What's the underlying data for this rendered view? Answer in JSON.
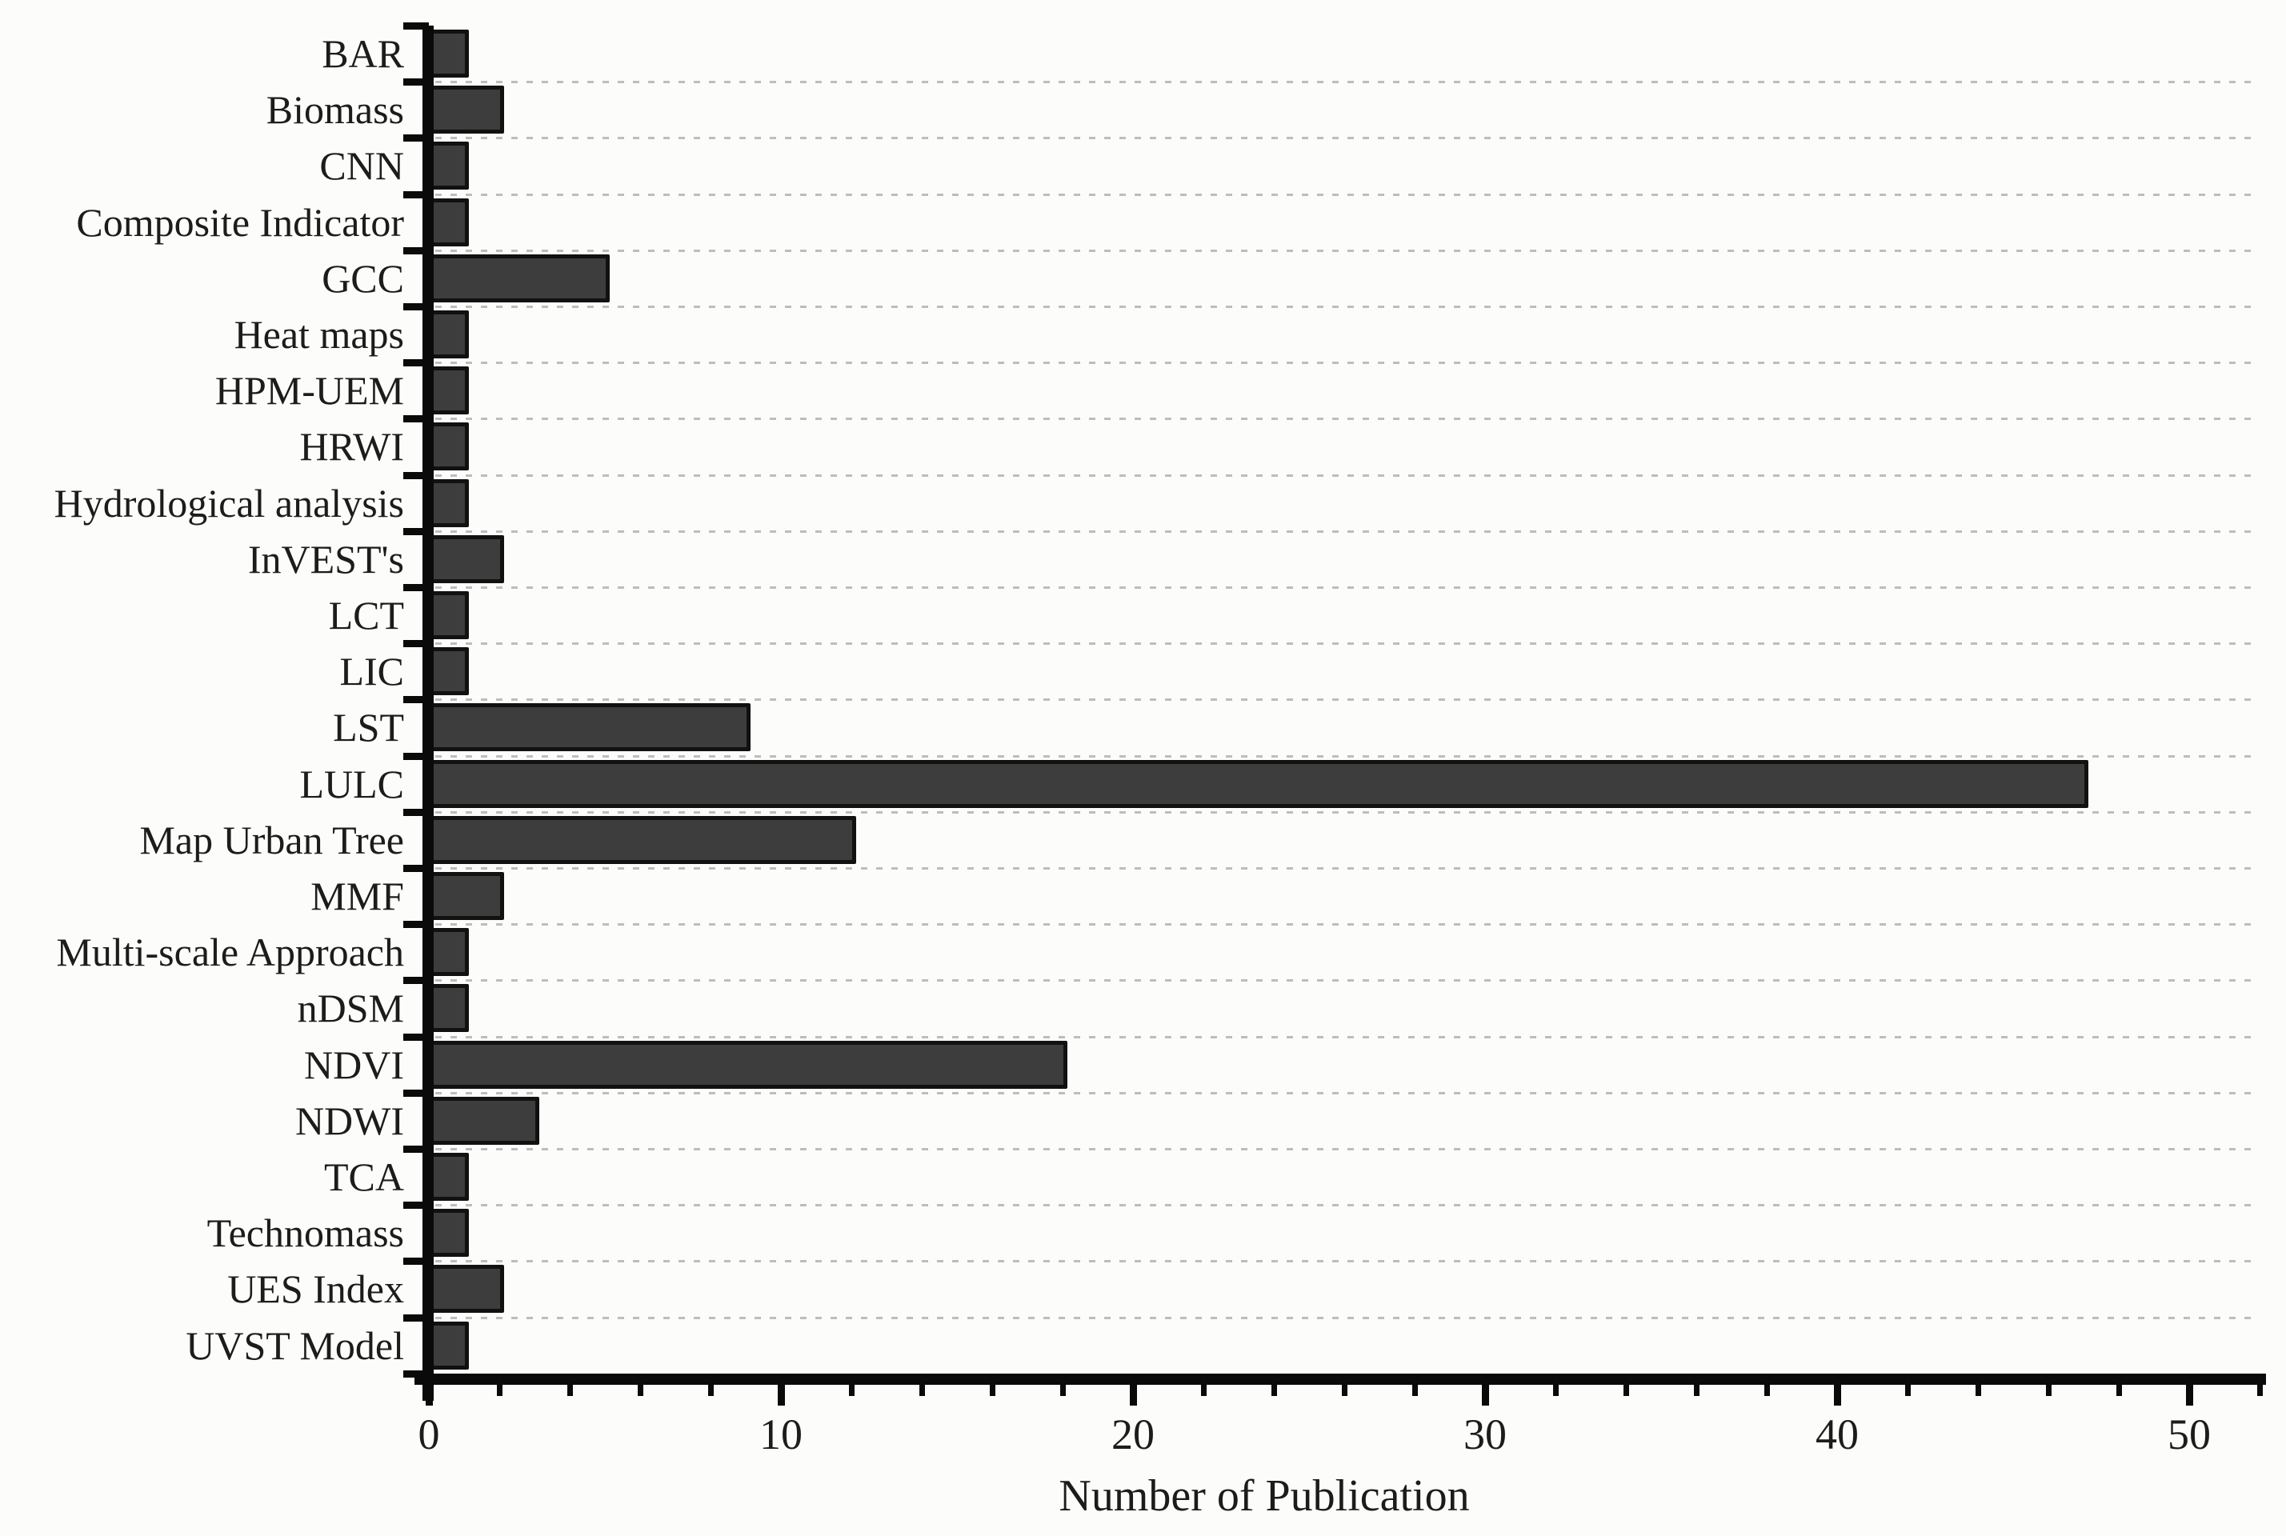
{
  "chart_data": {
    "type": "bar",
    "orientation": "horizontal",
    "title": "",
    "xlabel": "Number of Publication",
    "ylabel": "",
    "categories": [
      "BAR",
      "Biomass",
      "CNN",
      "Composite Indicator",
      "GCC",
      "Heat maps",
      "HPM-UEM",
      "HRWI",
      "Hydrological analysis",
      "InVEST's",
      "LCT",
      "LIC",
      "LST",
      "LULC",
      "Map Urban Tree",
      "MMF",
      "Multi-scale Approach",
      "nDSM",
      "NDVI",
      "NDWI",
      "TCA",
      "Technomass",
      "UES Index",
      "UVST Model"
    ],
    "values": [
      1,
      2,
      1,
      1,
      5,
      1,
      1,
      1,
      1,
      2,
      1,
      1,
      9,
      47,
      12,
      2,
      1,
      1,
      18,
      3,
      1,
      1,
      2,
      1
    ],
    "xlim": [
      0,
      52
    ],
    "x_major_ticks": [
      0,
      10,
      20,
      30,
      40,
      50
    ],
    "x_minor_tick_step": 2,
    "grid": "horizontal-dashed",
    "legend_position": "none",
    "colors": {
      "bar_fill": "#3d3d3d",
      "bar_stroke": "#111111",
      "gridline": "#bdbdbd",
      "axis": "#0a0a0a",
      "text": "#1c1c1c",
      "background": "#fcfcfa"
    }
  }
}
